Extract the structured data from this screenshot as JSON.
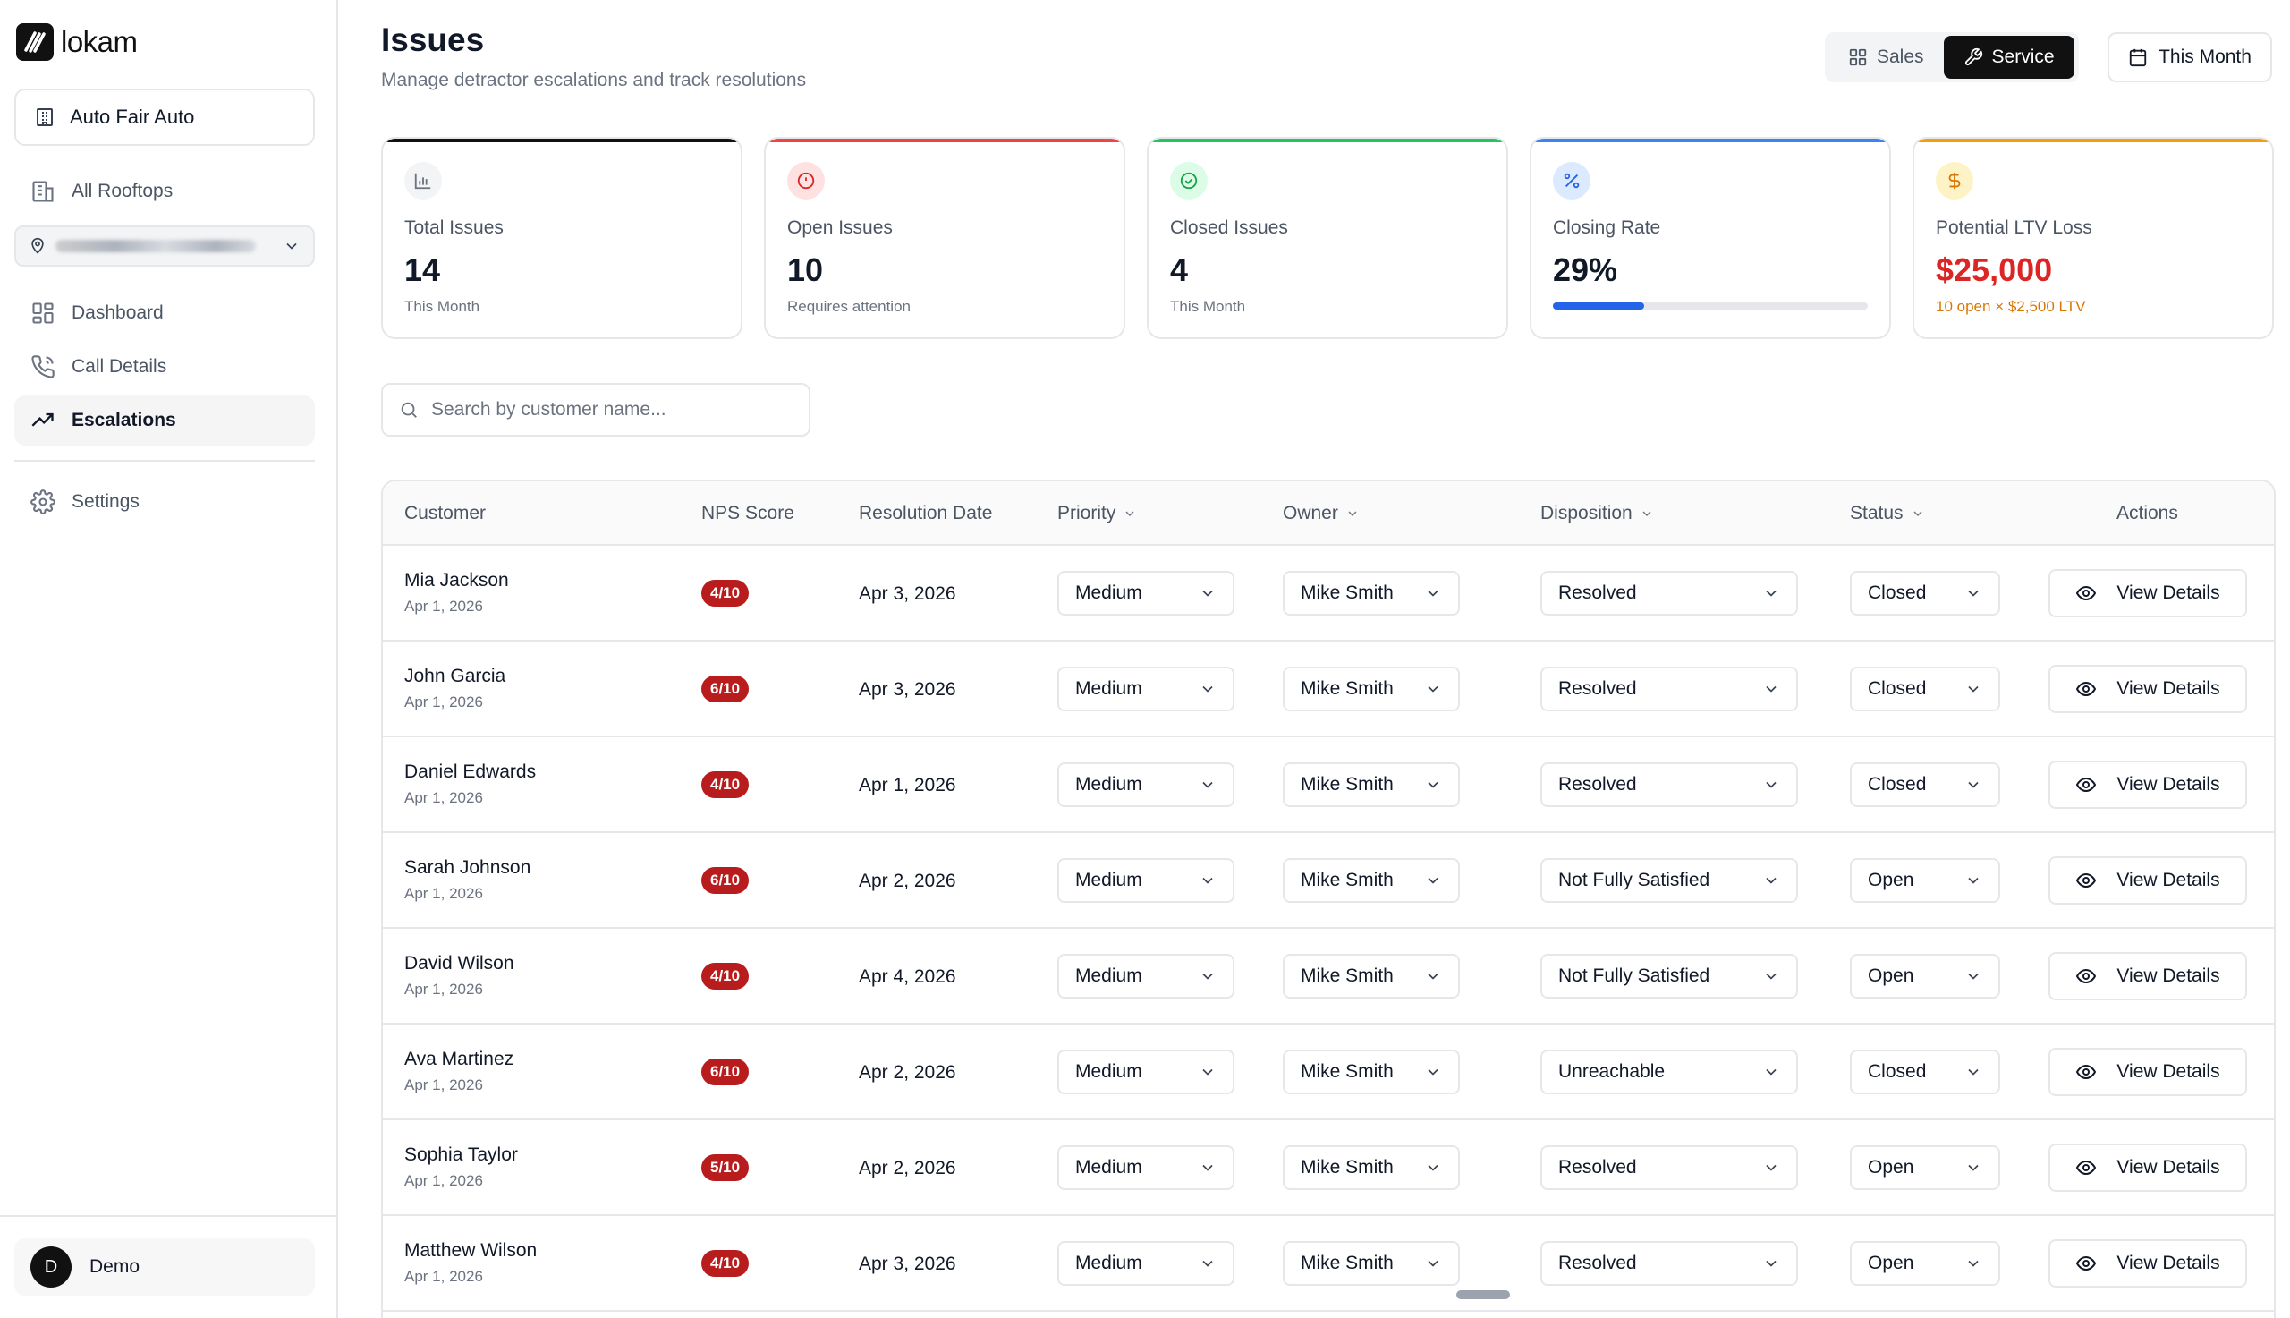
{
  "brand": {
    "name": "lokam"
  },
  "sidebar": {
    "dealer": "Auto Fair Auto",
    "all_rooftops": "All Rooftops",
    "nav": [
      {
        "label": "Dashboard",
        "icon": "dashboard-icon"
      },
      {
        "label": "Call Details",
        "icon": "phone-icon"
      },
      {
        "label": "Escalations",
        "icon": "trending-up-icon",
        "active": true
      }
    ],
    "settings": "Settings",
    "user": {
      "initial": "D",
      "name": "Demo"
    }
  },
  "header": {
    "title": "Issues",
    "subtitle": "Manage detractor escalations and track resolutions",
    "segments": [
      "Sales",
      "Service"
    ],
    "active_segment": "Service",
    "period": "This Month"
  },
  "stats": [
    {
      "label": "Total Issues",
      "value": "14",
      "sub": "This Month",
      "color": "#111111",
      "icon": "bar-chart-icon"
    },
    {
      "label": "Open Issues",
      "value": "10",
      "sub": "Requires attention",
      "color": "#ef4444",
      "icon": "alert-circle-icon"
    },
    {
      "label": "Closed Issues",
      "value": "4",
      "sub": "This Month",
      "color": "#22c55e",
      "icon": "check-circle-icon"
    },
    {
      "label": "Closing Rate",
      "value": "29%",
      "progress": 0.29,
      "color": "#3b82f6",
      "icon": "percent-icon"
    },
    {
      "label": "Potential LTV Loss",
      "value": "$25,000",
      "sub": "10 open × $2,500 LTV",
      "color": "#f59e0b",
      "icon": "dollar-icon"
    }
  ],
  "search": {
    "placeholder": "Search by customer name..."
  },
  "table": {
    "columns": [
      "Customer",
      "NPS Score",
      "Resolution Date",
      "Priority",
      "Owner",
      "Disposition",
      "Status",
      "Actions"
    ],
    "action_label": "View Details",
    "rows": [
      {
        "customer": "Mia Jackson",
        "date": "Apr 1, 2026",
        "nps": "4/10",
        "resolution": "Apr 3, 2026",
        "priority": "Medium",
        "owner": "Mike Smith",
        "disposition": "Resolved",
        "status": "Closed"
      },
      {
        "customer": "John Garcia",
        "date": "Apr 1, 2026",
        "nps": "6/10",
        "resolution": "Apr 3, 2026",
        "priority": "Medium",
        "owner": "Mike Smith",
        "disposition": "Resolved",
        "status": "Closed"
      },
      {
        "customer": "Daniel Edwards",
        "date": "Apr 1, 2026",
        "nps": "4/10",
        "resolution": "Apr 1, 2026",
        "priority": "Medium",
        "owner": "Mike Smith",
        "disposition": "Resolved",
        "status": "Closed"
      },
      {
        "customer": "Sarah Johnson",
        "date": "Apr 1, 2026",
        "nps": "6/10",
        "resolution": "Apr 2, 2026",
        "priority": "Medium",
        "owner": "Mike Smith",
        "disposition": "Not Fully Satisfied",
        "status": "Open"
      },
      {
        "customer": "David Wilson",
        "date": "Apr 1, 2026",
        "nps": "4/10",
        "resolution": "Apr 4, 2026",
        "priority": "Medium",
        "owner": "Mike Smith",
        "disposition": "Not Fully Satisfied",
        "status": "Open"
      },
      {
        "customer": "Ava Martinez",
        "date": "Apr 1, 2026",
        "nps": "6/10",
        "resolution": "Apr 2, 2026",
        "priority": "Medium",
        "owner": "Mike Smith",
        "disposition": "Unreachable",
        "status": "Closed"
      },
      {
        "customer": "Sophia Taylor",
        "date": "Apr 1, 2026",
        "nps": "5/10",
        "resolution": "Apr 2, 2026",
        "priority": "Medium",
        "owner": "Mike Smith",
        "disposition": "Resolved",
        "status": "Open"
      },
      {
        "customer": "Matthew Wilson",
        "date": "Apr 1, 2026",
        "nps": "4/10",
        "resolution": "Apr 3, 2026",
        "priority": "Medium",
        "owner": "Mike Smith",
        "disposition": "Resolved",
        "status": "Open"
      }
    ]
  }
}
